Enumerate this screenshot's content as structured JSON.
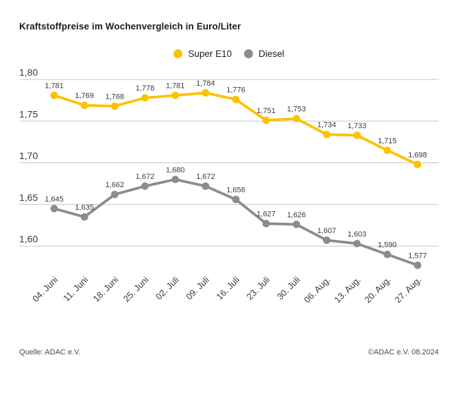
{
  "title": "Kraftstoffpreise im Wochenvergleich in Euro/Liter",
  "footer": {
    "source": "Quelle: ADAC e.V.",
    "copyright": "©ADAC e.V. 08.2024"
  },
  "colors": {
    "super_e10": "#fcc200",
    "diesel": "#8c8c8c",
    "gridline": "#c6c6c6",
    "tick_text": "#3a3a3a",
    "value_text": "#3a3a3a",
    "title_text": "#1d1d1b",
    "footer_text": "#4a4a4a",
    "background": "#ffffff"
  },
  "chart_data": {
    "type": "line",
    "title": "Kraftstoffpreise im Wochenvergleich in Euro/Liter",
    "unit": "Euro/Liter",
    "grid": "horizontal",
    "legend_position": "top-center",
    "categories": [
      "04. Juni",
      "11. Juni",
      "18. Juni",
      "25. Juni",
      "02. Juli",
      "09. Juli",
      "16. Juli",
      "23. Juli",
      "30. Juli",
      "06. Aug.",
      "13. Aug.",
      "20. Aug.",
      "27. Aug."
    ],
    "series": [
      {
        "name": "Super E10",
        "color": "#fcc200",
        "values": [
          1.781,
          1.769,
          1.768,
          1.778,
          1.781,
          1.784,
          1.776,
          1.751,
          1.753,
          1.734,
          1.733,
          1.715,
          1.698
        ],
        "labels": [
          "1,781",
          "1,769",
          "1,768",
          "1,778",
          "1,781",
          "1,784",
          "1,776",
          "1,751",
          "1,753",
          "1,734",
          "1,733",
          "1,715",
          "1,698"
        ]
      },
      {
        "name": "Diesel",
        "color": "#8c8c8c",
        "values": [
          1.645,
          1.635,
          1.662,
          1.672,
          1.68,
          1.672,
          1.656,
          1.627,
          1.626,
          1.607,
          1.603,
          1.59,
          1.577
        ],
        "labels": [
          "1,645",
          "1,635",
          "1,662",
          "1,672",
          "1,680",
          "1,672",
          "1,656",
          "1,627",
          "1,626",
          "1,607",
          "1,603",
          "1,590",
          "1,577"
        ]
      }
    ],
    "y_ticks": [
      {
        "value": 1.8,
        "label": "1,80"
      },
      {
        "value": 1.75,
        "label": "1,75"
      },
      {
        "value": 1.7,
        "label": "1,70"
      },
      {
        "value": 1.65,
        "label": "1,65"
      },
      {
        "value": 1.6,
        "label": "1,60"
      }
    ],
    "ylim": [
      1.575,
      1.81
    ]
  }
}
